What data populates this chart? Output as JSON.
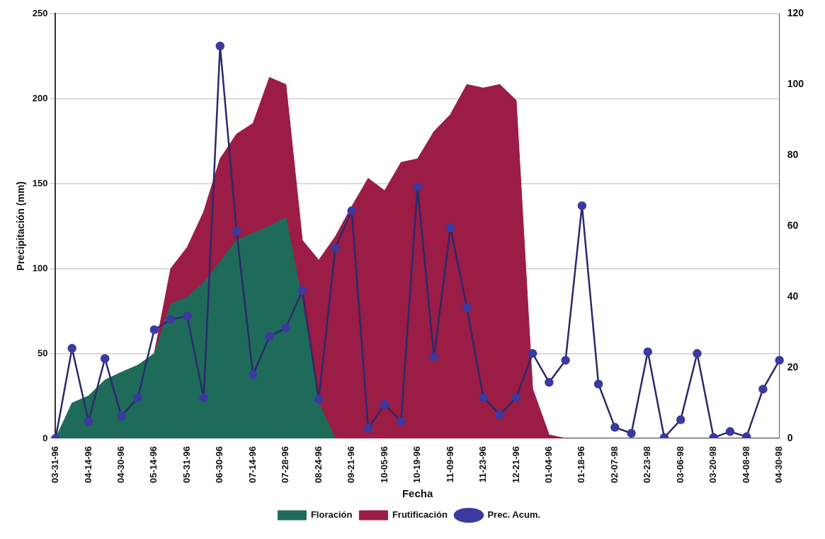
{
  "chart_data": {
    "type": "area",
    "xlabel": "Fecha",
    "ylabel": "Precipitación (mm)",
    "categories": [
      "03-31-96",
      null,
      "04-14-96",
      null,
      "04-30-96",
      null,
      "05-14-96",
      null,
      "05-31-96",
      null,
      "06-30-96",
      null,
      "07-14-96",
      null,
      "07-28-96",
      null,
      "08-24-96",
      null,
      "09-21-96",
      null,
      "10-05-96",
      null,
      "10-19-96",
      null,
      "11-09-96",
      null,
      "11-23-96",
      null,
      "12-21-96",
      null,
      "01-04-96",
      null,
      "01-18-96",
      null,
      "02-07-98",
      null,
      "02-23-98",
      null,
      "03-06-98",
      null,
      "03-20-98",
      null,
      "04-08-98",
      null,
      "04-30-98"
    ],
    "series": [
      {
        "name": "Floración",
        "axis": "y2",
        "color": "#1f6b5a",
        "values": [
          0,
          10,
          12,
          16.5,
          18.7,
          20.7,
          24,
          38,
          40,
          44,
          50,
          56,
          58,
          60,
          62.5,
          38.7,
          10,
          0,
          null,
          null,
          null,
          null,
          null,
          null,
          null,
          null,
          null,
          null,
          null,
          null,
          null,
          null,
          null,
          null,
          null,
          null,
          null,
          null,
          null,
          null,
          null,
          null,
          null,
          null,
          null
        ]
      },
      {
        "name": "Frutificación",
        "axis": "y2",
        "color": "#9b1c45",
        "values": [
          null,
          null,
          null,
          null,
          null,
          null,
          24,
          48,
          54,
          64,
          79,
          86,
          89,
          102,
          100,
          56,
          50.4,
          57,
          65.5,
          73.5,
          70,
          78,
          79,
          86.7,
          91.5,
          100,
          99,
          100,
          95.5,
          14,
          1,
          0,
          null,
          null,
          null,
          null,
          null,
          null,
          null,
          null,
          null,
          null,
          null,
          null,
          null
        ]
      },
      {
        "name": "Prec. Acum.",
        "type": "line",
        "marker": "circle",
        "axis": "y",
        "color": "#2a2a6a",
        "values": [
          0,
          53,
          10,
          47,
          13,
          24,
          64,
          70,
          72,
          24,
          231,
          122,
          37.5,
          60,
          65,
          87,
          23,
          112,
          134,
          6,
          20,
          10,
          148,
          48,
          124,
          77,
          24,
          14,
          24,
          50,
          33,
          46,
          137,
          32,
          6.5,
          3,
          51,
          0.5,
          11,
          50,
          0.5,
          4,
          1,
          29,
          46
        ]
      }
    ],
    "ylim": [
      0,
      250
    ],
    "yticks": [
      0,
      50,
      100,
      150,
      200,
      250
    ],
    "y2lim": [
      0,
      120
    ],
    "y2ticks": [
      0,
      20,
      40,
      60,
      80,
      100,
      120
    ],
    "grid": "y",
    "legend": "bottom",
    "line_style": "solid"
  }
}
